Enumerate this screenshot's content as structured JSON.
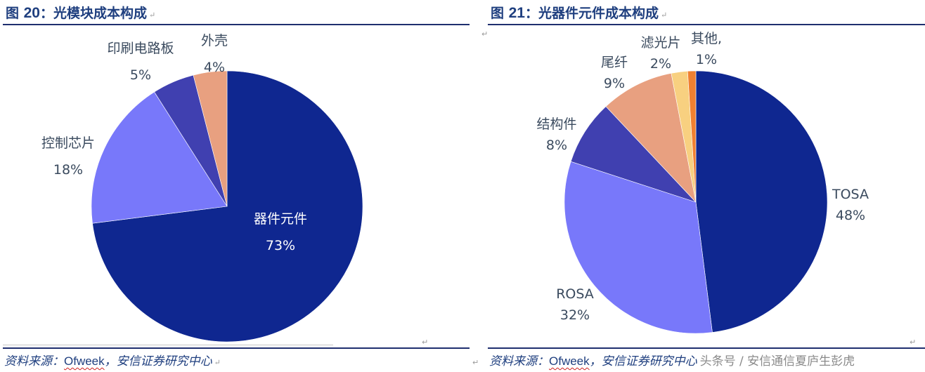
{
  "figure20": {
    "title_prefix": "图 ",
    "title_num": "20",
    "title_text": "：光模块成本构成",
    "source_prefix": "资料来源：",
    "source_brand": "Ofweek",
    "source_suffix": "，安信证券研究中心",
    "labels": [
      {
        "name": "器件元件",
        "pct": "73%"
      },
      {
        "name": "控制芯片",
        "pct": "18%"
      },
      {
        "name": "印刷电路板",
        "pct": "5%"
      },
      {
        "name": "外壳",
        "pct": "4%"
      }
    ]
  },
  "figure21": {
    "title_prefix": "图 ",
    "title_num": "21",
    "title_text": "：光器件元件成本构成",
    "source_prefix": "资料来源：",
    "source_brand": "Ofweek",
    "source_suffix": "，安信证券研究中心",
    "watermark": "头条号 / 安信通信夏庐生彭虎",
    "labels": [
      {
        "name": "TOSA",
        "pct": "48%"
      },
      {
        "name": "ROSA",
        "pct": "32%"
      },
      {
        "name": "结构件",
        "pct": "8%"
      },
      {
        "name": "尾纤",
        "pct": "9%"
      },
      {
        "name": "滤光片",
        "pct": "2%"
      },
      {
        "name": "其他,",
        "pct": "1%"
      }
    ]
  },
  "paragraph_mark": "↵",
  "chart_data": [
    {
      "type": "pie",
      "title": "图 20：光模块成本构成",
      "categories": [
        "器件元件",
        "控制芯片",
        "印刷电路板",
        "外壳"
      ],
      "values": [
        73,
        18,
        5,
        4
      ],
      "colors": [
        "#0f2790",
        "#7878fa",
        "#4040b0",
        "#e8a080"
      ],
      "start_angle_deg": 0,
      "direction": "clockwise",
      "data_labels": true,
      "legend": "none",
      "source": "资料来源：Ofweek，安信证券研究中心"
    },
    {
      "type": "pie",
      "title": "图 21：光器件元件成本构成",
      "categories": [
        "TOSA",
        "ROSA",
        "结构件",
        "尾纤",
        "滤光片",
        "其他"
      ],
      "values": [
        48,
        32,
        8,
        9,
        2,
        1
      ],
      "colors": [
        "#0f2790",
        "#7878fa",
        "#4040b0",
        "#e8a080",
        "#f8d080",
        "#f08030"
      ],
      "start_angle_deg": 0,
      "direction": "clockwise",
      "data_labels": true,
      "legend": "none",
      "source": "资料来源：Ofweek，安信证券研究中心"
    }
  ]
}
